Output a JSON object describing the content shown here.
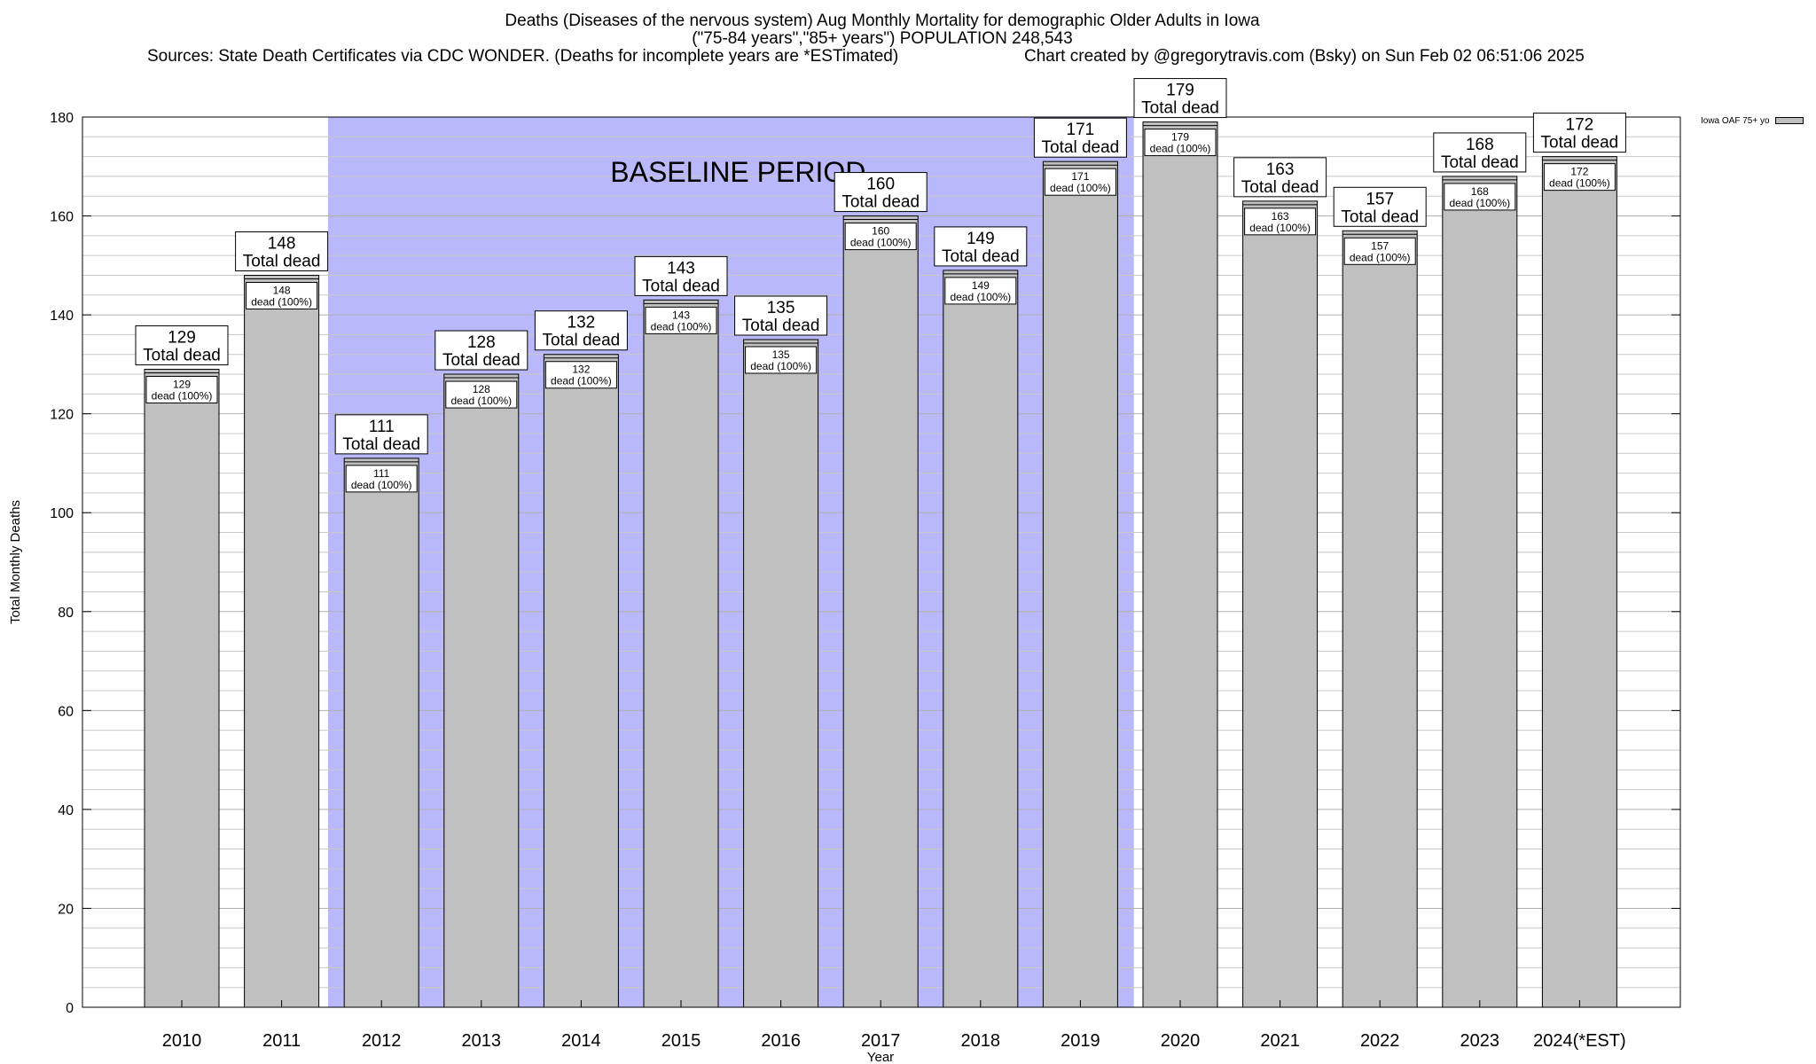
{
  "header": {
    "title": "Deaths (Diseases of the nervous system) Aug Monthly Mortality for demographic Older Adults in Iowa",
    "subtitle": "(\"75-84 years\",\"85+ years\") POPULATION 248,543",
    "sources": "Sources: State Death Certificates via CDC WONDER. (Deaths for incomplete years are *ESTimated)",
    "credit": "Chart created by @gregorytravis.com (Bsky) on Sun Feb 02 06:51:06 2025"
  },
  "colors": {
    "bar_fill": "#c0c0c0",
    "baseline_fill": "#b8b8fa",
    "grid": "#c8c8c8"
  },
  "chart_data": {
    "type": "bar",
    "title": "Deaths (Diseases of the nervous system) Aug Monthly Mortality for demographic Older Adults in Iowa",
    "xlabel": "Year",
    "ylabel": "Total Monthly Deaths",
    "ylim": [
      0,
      180
    ],
    "yticks": [
      0,
      20,
      40,
      60,
      80,
      100,
      120,
      140,
      160,
      180
    ],
    "grid": true,
    "categories": [
      "2010",
      "2011",
      "2012",
      "2013",
      "2014",
      "2015",
      "2016",
      "2017",
      "2018",
      "2019",
      "2020",
      "2021",
      "2022",
      "2023",
      "2024(*EST)"
    ],
    "series": [
      {
        "name": "Iowa OAF 75+ yo",
        "values": [
          129,
          148,
          111,
          128,
          132,
          143,
          135,
          160,
          149,
          171,
          179,
          163,
          157,
          168,
          172
        ]
      }
    ],
    "total_label_suffix": "Total dead",
    "inner_label_suffix": "dead (100%)",
    "baseline": {
      "label": "BASELINE PERIOD",
      "from": "2012",
      "to": "2019"
    },
    "legend": {
      "position": "top-right",
      "label": "Iowa OAF 75+ yo"
    }
  }
}
